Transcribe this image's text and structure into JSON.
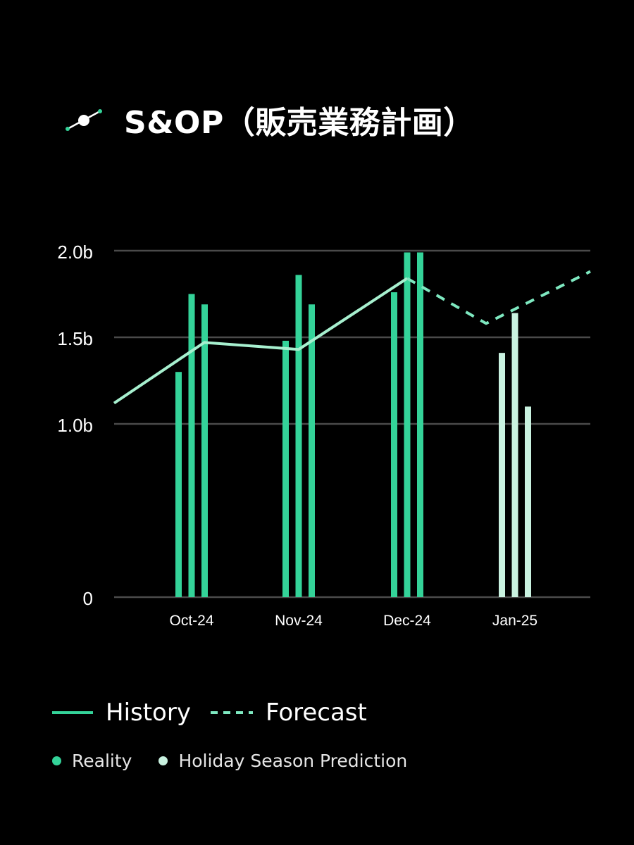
{
  "title": "S&OP（販売業務計画）",
  "title_icon": "line-node-icon",
  "colors": {
    "background": "#000000",
    "reality": "#34d399",
    "prediction": "#c9f2e0",
    "history_line": "#a7f0cf",
    "forecast_line": "#7ee8c0",
    "grid": "#4a4a4a",
    "axis_text": "#ffffff"
  },
  "legend": {
    "history_label": "History",
    "forecast_label": "Forecast",
    "reality_label": "Reality",
    "prediction_label": "Holiday Season Prediction"
  },
  "chart_data": {
    "type": "bar",
    "title": "S&OP（販売業務計画）",
    "categories": [
      "Oct-24",
      "Nov-24",
      "Dec-24",
      "Jan-25"
    ],
    "yticks": [
      {
        "value": 0,
        "label": "0"
      },
      {
        "value": 1.0,
        "label": "1.0b"
      },
      {
        "value": 1.5,
        "label": "1.5b"
      },
      {
        "value": 2.0,
        "label": "2.0b"
      }
    ],
    "ylim": [
      0,
      2.0
    ],
    "grid": true,
    "legend_position": "bottom",
    "bar_groups": [
      {
        "category": "Oct-24",
        "series": "Reality",
        "values": [
          1.3,
          1.75,
          1.69
        ]
      },
      {
        "category": "Nov-24",
        "series": "Reality",
        "values": [
          1.48,
          1.86,
          1.69
        ]
      },
      {
        "category": "Dec-24",
        "series": "Reality",
        "values": [
          1.76,
          1.99,
          1.99
        ]
      },
      {
        "category": "Jan-25",
        "series": "Holiday Season Prediction",
        "values": [
          1.41,
          1.64,
          1.1
        ]
      }
    ],
    "lines": [
      {
        "name": "History",
        "style": "solid",
        "points": [
          {
            "x": "Sep-24",
            "y": 1.12
          },
          {
            "x": "Oct-24",
            "y": 1.47
          },
          {
            "x": "Nov-24",
            "y": 1.43
          },
          {
            "x": "Dec-24",
            "y": 1.84
          }
        ]
      },
      {
        "name": "Forecast",
        "style": "dashed",
        "points": [
          {
            "x": "Dec-24",
            "y": 1.84
          },
          {
            "x": "Dec-24/Jan-25",
            "y": 1.58
          },
          {
            "x": "Feb-25",
            "y": 1.88
          }
        ]
      }
    ]
  }
}
